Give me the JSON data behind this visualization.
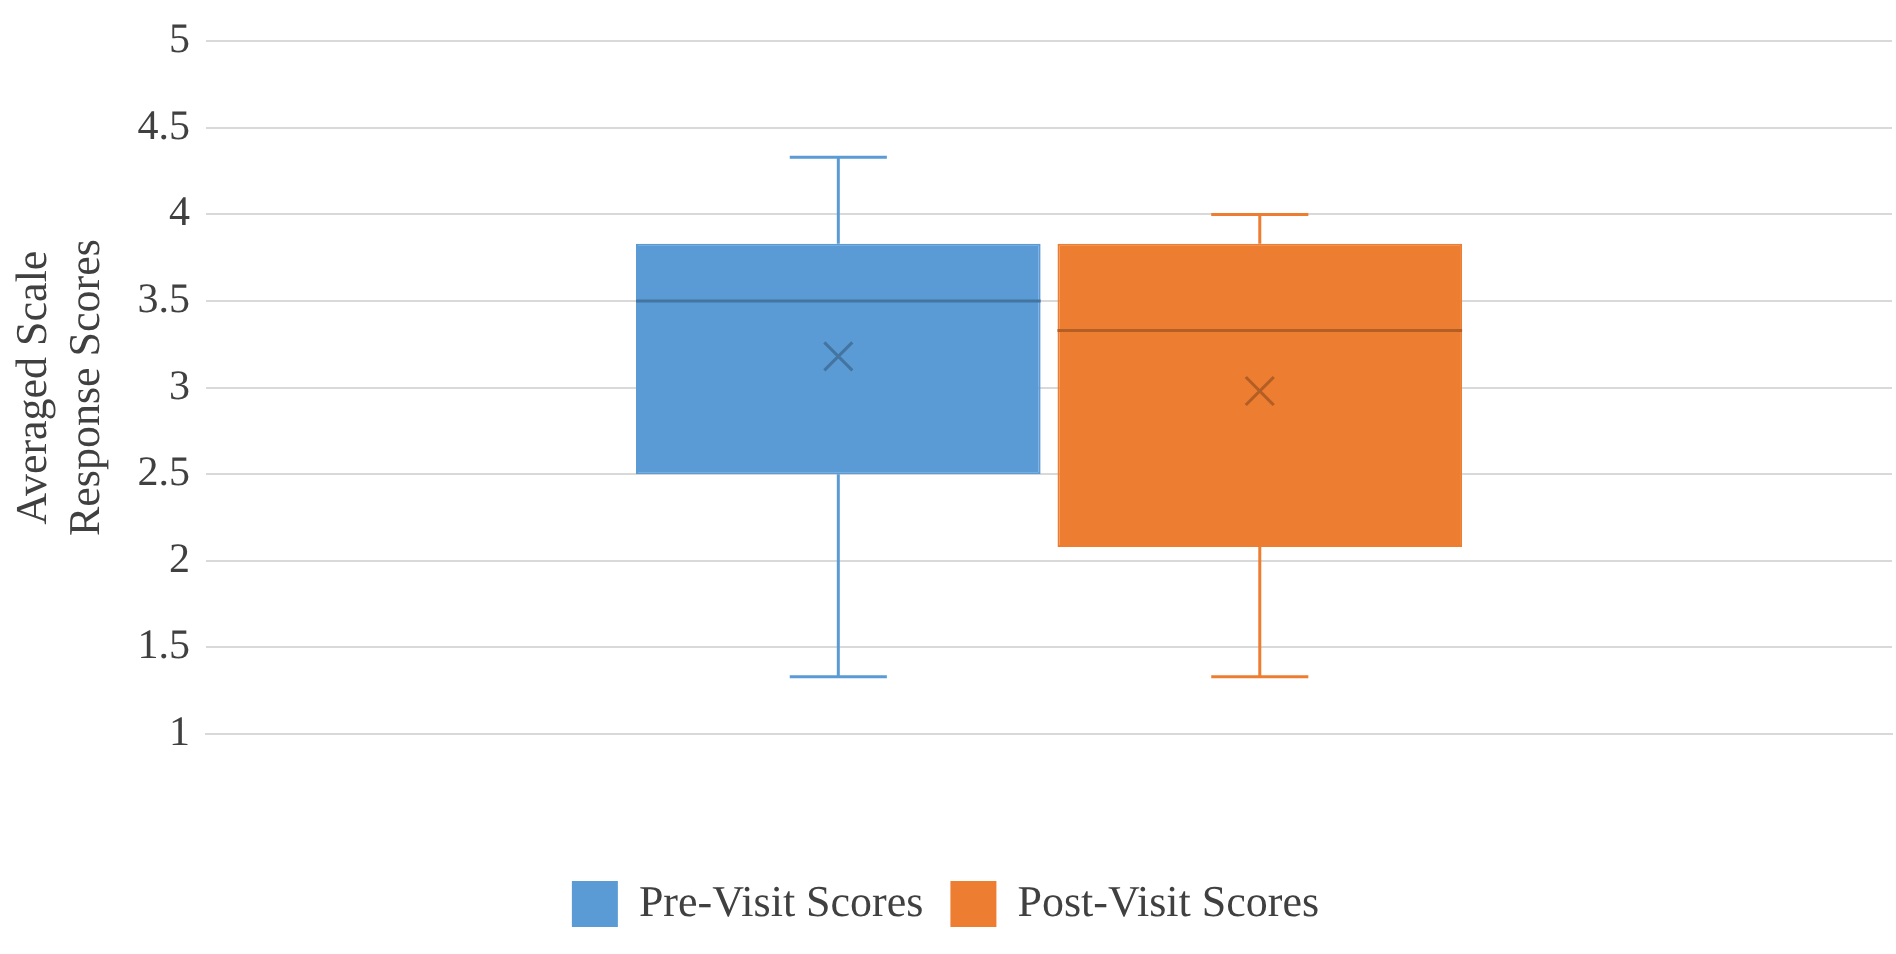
{
  "chart_data": {
    "type": "box",
    "ylabel": "Averaged Scale Response Scores",
    "categories": [
      null
    ],
    "series": [
      {
        "name": "Pre-Visit Scores",
        "color": "#5b9bd5",
        "boxes": [
          {
            "low": 1.33,
            "q1": 2.5,
            "median": 3.5,
            "q3": 3.83,
            "high": 4.33,
            "mean": 3.18
          }
        ]
      },
      {
        "name": "Post-Visit Scores",
        "color": "#ed7d31",
        "boxes": [
          {
            "low": 1.33,
            "q1": 2.08,
            "median": 3.33,
            "q3": 3.83,
            "high": 4,
            "mean": 2.98
          }
        ]
      }
    ],
    "ylim": [
      1,
      5
    ],
    "yticks": [
      1,
      1.5,
      2,
      2.5,
      3,
      3.5,
      4,
      4.5,
      5
    ],
    "grid": "y",
    "legend": "bottom",
    "tick_labels": "y"
  }
}
